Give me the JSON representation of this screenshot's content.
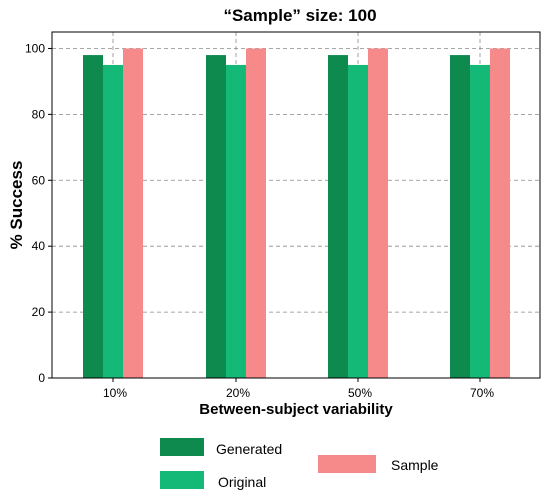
{
  "chart_data": {
    "type": "bar",
    "title": "“Sample” size: 100",
    "xlabel": "Between-subject variability",
    "ylabel": "% Success",
    "categories": [
      "10%",
      "20%",
      "50%",
      "70%"
    ],
    "series": [
      {
        "name": "Generated",
        "values": [
          98,
          98,
          98,
          98
        ],
        "color": "#0e8a4f"
      },
      {
        "name": "Original",
        "values": [
          95,
          95,
          95,
          95
        ],
        "color": "#14b877"
      },
      {
        "name": "Sample",
        "values": [
          100,
          100,
          100,
          100
        ],
        "color": "#f6898a"
      }
    ],
    "ylim": [
      0,
      105
    ],
    "yticks": [
      0,
      20,
      40,
      60,
      80,
      100
    ],
    "grid": true,
    "legend_position": "bottom"
  }
}
